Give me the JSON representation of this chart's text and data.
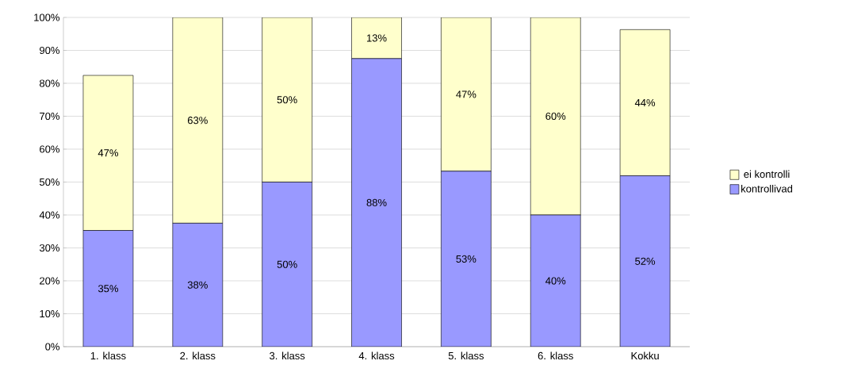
{
  "chart_data": {
    "type": "bar",
    "stacked": true,
    "categories": [
      "1. klass",
      "2. klass",
      "3. klass",
      "4. klass",
      "5. klass",
      "6. klass",
      "Kokku"
    ],
    "series": [
      {
        "name": "kontrollivad",
        "color": "#9999ff",
        "values": [
          35.3,
          37.5,
          50,
          87.5,
          53.3,
          40,
          51.9
        ],
        "value_labels": [
          "35%",
          "38%",
          "50%",
          "88%",
          "53%",
          "40%",
          "52%"
        ]
      },
      {
        "name": "ei kontrolli",
        "color": "#ffffcc",
        "values": [
          47.1,
          62.5,
          50,
          12.5,
          46.7,
          60,
          44.4
        ],
        "value_labels": [
          "47%",
          "63%",
          "50%",
          "13%",
          "47%",
          "60%",
          "44%"
        ]
      }
    ],
    "ylim": [
      0,
      100
    ],
    "yticks": [
      {
        "value": 0,
        "label": "0%"
      },
      {
        "value": 10,
        "label": "10%"
      },
      {
        "value": 20,
        "label": "20%"
      },
      {
        "value": 30,
        "label": "30%"
      },
      {
        "value": 40,
        "label": "40%"
      },
      {
        "value": 50,
        "label": "50%"
      },
      {
        "value": 60,
        "label": "60%"
      },
      {
        "value": 70,
        "label": "70%"
      },
      {
        "value": 80,
        "label": "80%"
      },
      {
        "value": 90,
        "label": "90%"
      },
      {
        "value": 100,
        "label": "100%"
      }
    ],
    "grid": "y",
    "legend": "right"
  }
}
